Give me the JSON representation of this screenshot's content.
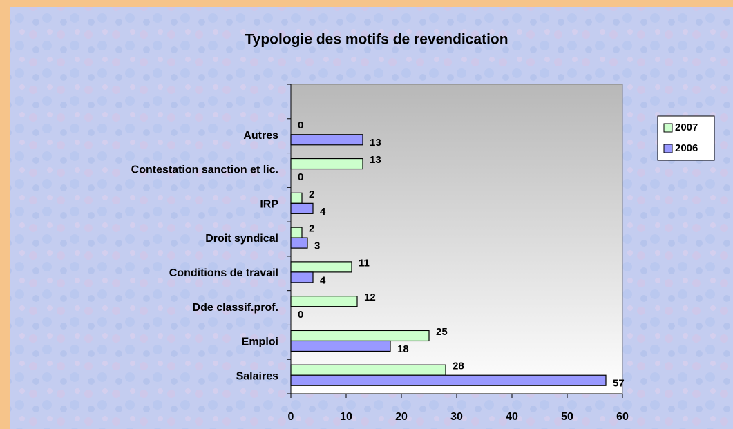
{
  "chart_data": {
    "type": "bar",
    "orientation": "horizontal",
    "title": "Typologie des motifs de revendication",
    "categories": [
      "Salaires",
      "Emploi",
      "Dde classif.prof.",
      "Conditions de travail",
      "Droit syndical",
      "IRP",
      "Contestation sanction et lic.",
      "Autres",
      null
    ],
    "series": [
      {
        "name": "2007",
        "color": "#ccffcc",
        "values": [
          28,
          25,
          12,
          11,
          2,
          2,
          13,
          0,
          null
        ]
      },
      {
        "name": "2006",
        "color": "#9999ff",
        "values": [
          57,
          18,
          0,
          4,
          3,
          4,
          0,
          13,
          null
        ]
      }
    ],
    "xlim": [
      0,
      60
    ],
    "xticks": [
      0,
      10,
      20,
      30,
      40,
      50,
      60
    ],
    "legend": "right",
    "grid": false
  }
}
